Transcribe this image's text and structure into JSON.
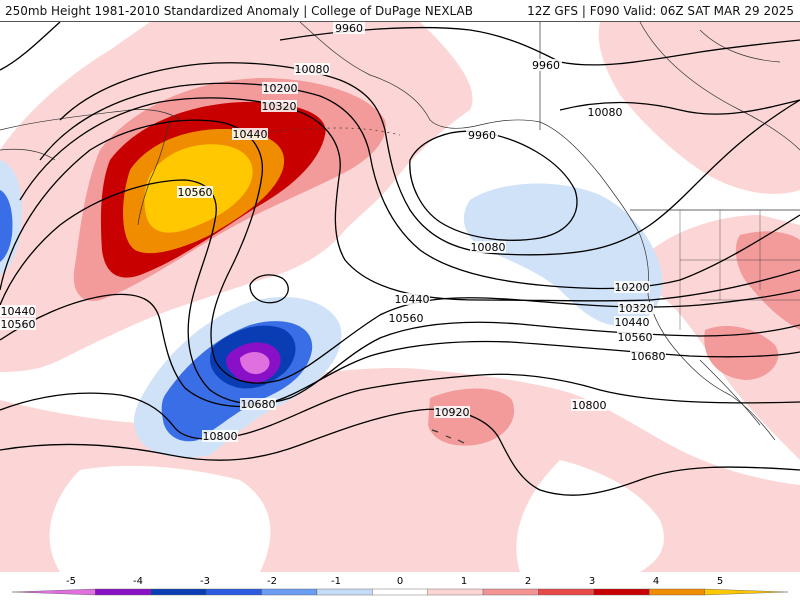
{
  "header": {
    "title_left": "250mb Height 1981-2010 Standardized Anomaly | College of DuPage NEXLAB",
    "title_right": "12Z GFS | F090 Valid: 06Z SAT MAR 29 2025"
  },
  "contour_labels": [
    "9960",
    "9960",
    "9960",
    "10080",
    "10080",
    "10080",
    "10200",
    "10200",
    "10320",
    "10320",
    "10440",
    "10440",
    "10440",
    "10440",
    "10560",
    "10560",
    "10560",
    "10560",
    "10680",
    "10680",
    "10800",
    "10800",
    "10920"
  ],
  "colorbar": {
    "ticks": [
      "-5",
      "-4",
      "-3",
      "-2",
      "-1",
      "0",
      "1",
      "2",
      "3",
      "4",
      "5"
    ],
    "colors": [
      "#e070e0",
      "#8a10c8",
      "#0a3cb4",
      "#2a5ae0",
      "#6a9cf2",
      "#c4dcf8",
      "#ffffff",
      "#ffd4d4",
      "#f39494",
      "#e84848",
      "#c80000",
      "#f08c00",
      "#ffc800"
    ]
  },
  "colors": {
    "neg1": "#cfe2f8",
    "neg2": "#3a6ee6",
    "neg3": "#0a3cb4",
    "neg4": "#8a10c8",
    "neg5": "#e070e0",
    "pos1": "#fcd6d6",
    "pos2": "#f39a9a",
    "pos3": "#e84848",
    "pos4": "#c80000",
    "pos5": "#f08c00",
    "pos6": "#ffc800"
  }
}
